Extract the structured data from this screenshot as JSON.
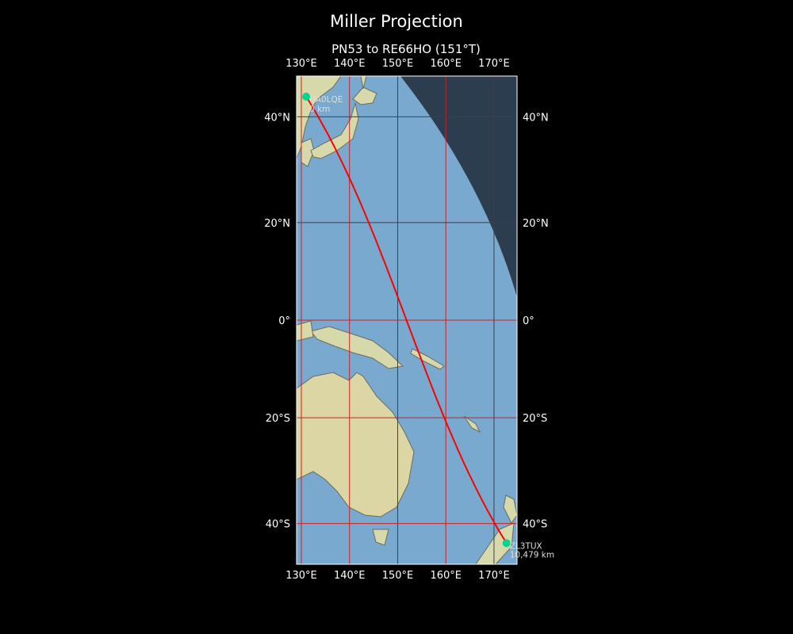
{
  "title": "Miller Projection",
  "subtitle": "PN53 to RE66HO (151°T)",
  "projection": "miller",
  "extent": {
    "lon": [
      129,
      174.8
    ],
    "lat": [
      -47.5,
      47.5
    ]
  },
  "lon_ticks": [
    {
      "v": 130,
      "label": "130°E"
    },
    {
      "v": 140,
      "label": "140°E"
    },
    {
      "v": 150,
      "label": "150°E"
    },
    {
      "v": 160,
      "label": "160°E"
    },
    {
      "v": 170,
      "label": "170°E"
    }
  ],
  "lat_ticks": [
    {
      "v": 40,
      "label": "40°N"
    },
    {
      "v": 20,
      "label": "20°N"
    },
    {
      "v": 0,
      "label": "0°"
    },
    {
      "v": -20,
      "label": "20°S"
    },
    {
      "v": -40,
      "label": "40°S"
    }
  ],
  "start": {
    "call": "UA0LQE",
    "dist": "0 km",
    "lon": 131.0,
    "lat": 43.5
  },
  "end": {
    "call": "ZL3TUX",
    "dist": "10,479 km",
    "lon": 172.6,
    "lat": -43.4
  },
  "colors": {
    "path": "#ff0000",
    "marker": "#00d68f",
    "ocean": "#79a9cf",
    "land": "#d9dcae",
    "night": "#1e2a38",
    "grid_day": "#cc2020",
    "grid_night": "#3a4050"
  }
}
